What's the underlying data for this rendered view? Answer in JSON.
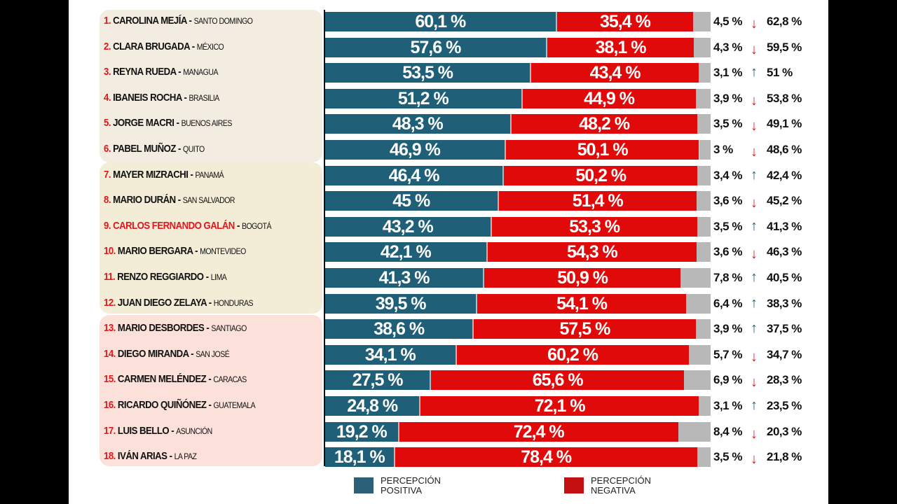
{
  "chart_data": {
    "type": "bar",
    "stacked": true,
    "orientation": "horizontal",
    "legend": [
      {
        "name": "PERCEPCIÓN POSITIVA",
        "color": "#1f5f77"
      },
      {
        "name": "PERCEPCIÓN NEGATIVA",
        "color": "#e10a0a"
      }
    ],
    "other_color": "#b8b8b8",
    "rows": [
      {
        "rank": "1.",
        "name": "CAROLINA MEJÍA",
        "city": "SANTO DOMINGO",
        "pos": 60.1,
        "neg": 35.4,
        "other": 4.5,
        "pos_l": "60,1 %",
        "neg_l": "35,4 %",
        "other_l": "4,5 %",
        "trend": "down",
        "prev_l": "62,8 %",
        "group": 1
      },
      {
        "rank": "2.",
        "name": "CLARA BRUGADA",
        "city": "MÉXICO",
        "pos": 57.6,
        "neg": 38.1,
        "other": 4.3,
        "pos_l": "57,6 %",
        "neg_l": "38,1 %",
        "other_l": "4,3 %",
        "trend": "down",
        "prev_l": "59,5 %",
        "group": 1
      },
      {
        "rank": "3.",
        "name": "REYNA RUEDA",
        "city": "MANAGUA",
        "pos": 53.5,
        "neg": 43.4,
        "other": 3.1,
        "pos_l": "53,5 %",
        "neg_l": "43,4 %",
        "other_l": "3,1 %",
        "trend": "up",
        "prev_l": "51 %",
        "group": 1
      },
      {
        "rank": "4.",
        "name": "IBANEIS ROCHA",
        "city": "BRASILIA",
        "pos": 51.2,
        "neg": 44.9,
        "other": 3.9,
        "pos_l": "51,2 %",
        "neg_l": "44,9 %",
        "other_l": "3,9 %",
        "trend": "down",
        "prev_l": "53,8 %",
        "group": 1
      },
      {
        "rank": "5.",
        "name": "JORGE MACRI",
        "city": "BUENOS AIRES",
        "pos": 48.3,
        "neg": 48.2,
        "other": 3.5,
        "pos_l": "48,3 %",
        "neg_l": "48,2 %",
        "other_l": "3,5 %",
        "trend": "down",
        "prev_l": "49,1 %",
        "group": 1
      },
      {
        "rank": "6.",
        "name": "PABEL MUÑOZ",
        "city": "QUITO",
        "pos": 46.9,
        "neg": 50.1,
        "other": 3,
        "pos_l": "46,9 %",
        "neg_l": "50,1 %",
        "other_l": "3 %",
        "trend": "down",
        "prev_l": "48,6 %",
        "group": 1
      },
      {
        "rank": "7.",
        "name": "MAYER MIZRACHI",
        "city": "PANAMÁ",
        "pos": 46.4,
        "neg": 50.2,
        "other": 3.4,
        "pos_l": "46,4 %",
        "neg_l": "50,2 %",
        "other_l": "3,4 %",
        "trend": "up",
        "prev_l": "42,4 %",
        "group": 2
      },
      {
        "rank": "8.",
        "name": "MARIO DURÁN",
        "city": "SAN SALVADOR",
        "pos": 45,
        "neg": 51.4,
        "other": 3.6,
        "pos_l": "45 %",
        "neg_l": "51,4 %",
        "other_l": "3,6 %",
        "trend": "down",
        "prev_l": "45,2 %",
        "group": 2
      },
      {
        "rank": "9.",
        "name": "CARLOS FERNANDO GALÁN",
        "city": "BOGOTÁ",
        "pos": 43.2,
        "neg": 53.3,
        "other": 3.5,
        "pos_l": "43,2 %",
        "neg_l": "53,3 %",
        "other_l": "3,5 %",
        "trend": "up",
        "prev_l": "41,3 %",
        "group": 2,
        "highlight": true
      },
      {
        "rank": "10.",
        "name": "MARIO BERGARA",
        "city": "MONTEVIDEO",
        "pos": 42.1,
        "neg": 54.3,
        "other": 3.6,
        "pos_l": "42,1 %",
        "neg_l": "54,3 %",
        "other_l": "3,6 %",
        "trend": "down",
        "prev_l": "46,3 %",
        "group": 2
      },
      {
        "rank": "11.",
        "name": "RENZO REGGIARDO",
        "city": "LIMA",
        "pos": 41.3,
        "neg": 50.9,
        "other": 7.8,
        "pos_l": "41,3 %",
        "neg_l": "50,9 %",
        "other_l": "7,8 %",
        "trend": "up",
        "prev_l": "40,5 %",
        "group": 2
      },
      {
        "rank": "12.",
        "name": "JUAN DIEGO ZELAYA",
        "city": "HONDURAS",
        "pos": 39.5,
        "neg": 54.1,
        "other": 6.4,
        "pos_l": "39,5 %",
        "neg_l": "54,1 %",
        "other_l": "6,4 %",
        "trend": "up",
        "prev_l": "38,3 %",
        "group": 2
      },
      {
        "rank": "13.",
        "name": "MARIO DESBORDES",
        "city": "SANTIAGO",
        "pos": 38.6,
        "neg": 57.5,
        "other": 3.9,
        "pos_l": "38,6 %",
        "neg_l": "57,5 %",
        "other_l": "3,9 %",
        "trend": "up",
        "prev_l": "37,5 %",
        "group": 3
      },
      {
        "rank": "14.",
        "name": "DIEGO MIRANDA",
        "city": "SAN JOSÉ",
        "pos": 34.1,
        "neg": 60.2,
        "other": 5.7,
        "pos_l": "34,1 %",
        "neg_l": "60,2 %",
        "other_l": "5,7 %",
        "trend": "down",
        "prev_l": "34,7 %",
        "group": 3
      },
      {
        "rank": "15.",
        "name": "CARMEN MELÉNDEZ",
        "city": "CARACAS",
        "pos": 27.5,
        "neg": 65.6,
        "other": 6.9,
        "pos_l": "27,5 %",
        "neg_l": "65,6 %",
        "other_l": "6,9 %",
        "trend": "down",
        "prev_l": "28,3 %",
        "group": 3
      },
      {
        "rank": "16.",
        "name": "RICARDO QUIÑÓNEZ",
        "city": "GUATEMALA",
        "pos": 24.8,
        "neg": 72.1,
        "other": 3.1,
        "pos_l": "24,8 %",
        "neg_l": "72,1 %",
        "other_l": "3,1 %",
        "trend": "up",
        "prev_l": "23,5 %",
        "group": 3
      },
      {
        "rank": "17.",
        "name": "LUIS BELLO",
        "city": "ASUNCIÓN",
        "pos": 19.2,
        "neg": 72.4,
        "other": 8.4,
        "pos_l": "19,2 %",
        "neg_l": "72,4 %",
        "other_l": "8,4 %",
        "trend": "down",
        "prev_l": "20,3 %",
        "group": 3
      },
      {
        "rank": "18.",
        "name": "IVÁN ARIAS",
        "city": "LA PAZ",
        "pos": 18.1,
        "neg": 78.4,
        "other": 3.5,
        "pos_l": "18,1 %",
        "neg_l": "78,4 %",
        "other_l": "3,5 %",
        "trend": "down",
        "prev_l": "21,8 %",
        "group": 3
      }
    ],
    "group_colors": {
      "1": "#f3ece1",
      "2": "#f3ecd6",
      "3": "#fbe1d9"
    },
    "trend_colors": {
      "up": "#1f5f77",
      "down": "#e3161b"
    },
    "xlim": [
      0,
      100
    ]
  },
  "legend": {
    "positive": "PERCEPCIÓN POSITIVA",
    "negative": "PERCEPCIÓN NEGATIVA"
  }
}
